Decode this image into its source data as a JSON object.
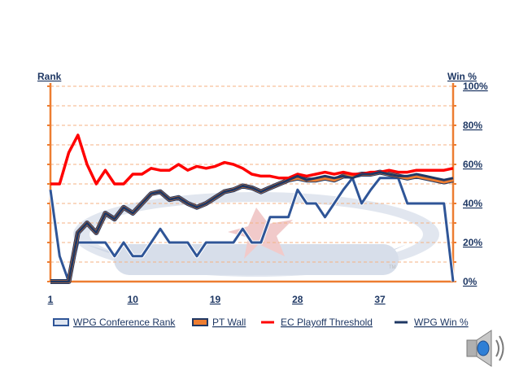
{
  "chart_data": {
    "type": "line",
    "left_axis_title": "Rank",
    "right_axis_title": "Win %",
    "right_ticks": [
      "0%",
      "20%",
      "40%",
      "60%",
      "80%",
      "100%"
    ],
    "x_tick_labels": [
      "1",
      "10",
      "19",
      "28",
      "37"
    ],
    "x_tick_values": [
      1,
      10,
      19,
      28,
      37
    ],
    "xlim": [
      1,
      45
    ],
    "ylim": [
      0,
      100
    ],
    "grid": "horizontal dashed",
    "legend_position": "bottom",
    "series": [
      {
        "name": "WPG Conference Rank",
        "color": "#2f5597",
        "x": [
          1,
          2,
          3,
          4,
          5,
          6,
          7,
          8,
          9,
          10,
          11,
          12,
          13,
          14,
          15,
          16,
          17,
          18,
          19,
          20,
          21,
          22,
          23,
          24,
          25,
          26,
          27,
          28,
          29,
          30,
          31,
          32,
          33,
          34,
          35,
          36,
          37,
          38,
          39,
          40,
          41,
          42,
          43,
          44,
          45
        ],
        "values": [
          47,
          13,
          0,
          20,
          20,
          20,
          20,
          13,
          20,
          13,
          13,
          20,
          27,
          20,
          20,
          20,
          13,
          20,
          20,
          20,
          20,
          27,
          20,
          20,
          33,
          33,
          33,
          47,
          40,
          40,
          33,
          40,
          47,
          53,
          40,
          47,
          53,
          53,
          53,
          40,
          40,
          40,
          40,
          40,
          0
        ]
      },
      {
        "name": "PT Wall",
        "color": "#ed7d31",
        "x": [
          1,
          2,
          3,
          4,
          5,
          6,
          7,
          8,
          9,
          10,
          11,
          12,
          13,
          14,
          15,
          16,
          17,
          18,
          19,
          20,
          21,
          22,
          23,
          24,
          25,
          26,
          27,
          28,
          29,
          30,
          31,
          32,
          33,
          34,
          35,
          36,
          37,
          38,
          39,
          40,
          41,
          42,
          43,
          44,
          45
        ],
        "values": [
          0,
          0,
          0,
          25,
          30,
          25,
          35,
          32,
          38,
          35,
          40,
          45,
          46,
          42,
          43,
          40,
          38,
          40,
          43,
          46,
          47,
          49,
          48,
          46,
          48,
          50,
          52,
          53,
          52,
          52,
          53,
          52,
          54,
          54,
          55,
          55,
          56,
          55,
          54,
          53,
          54,
          53,
          52,
          51,
          52
        ]
      },
      {
        "name": "EC Playoff Threshold",
        "color": "#ff0000",
        "x": [
          1,
          2,
          3,
          4,
          5,
          6,
          7,
          8,
          9,
          10,
          11,
          12,
          13,
          14,
          15,
          16,
          17,
          18,
          19,
          20,
          21,
          22,
          23,
          24,
          25,
          26,
          27,
          28,
          29,
          30,
          31,
          32,
          33,
          34,
          35,
          36,
          37,
          38,
          39,
          40,
          41,
          42,
          43,
          44,
          45
        ],
        "values": [
          50,
          50,
          66,
          75,
          60,
          50,
          57,
          50,
          50,
          55,
          55,
          58,
          57,
          57,
          60,
          57,
          59,
          58,
          59,
          61,
          60,
          58,
          55,
          54,
          54,
          53,
          53,
          55,
          54,
          55,
          56,
          55,
          56,
          55,
          55,
          56,
          56,
          57,
          56,
          56,
          57,
          57,
          57,
          57,
          58
        ]
      },
      {
        "name": "WPG Win %",
        "color": "#1f3864",
        "x": [
          1,
          2,
          3,
          4,
          5,
          6,
          7,
          8,
          9,
          10,
          11,
          12,
          13,
          14,
          15,
          16,
          17,
          18,
          19,
          20,
          21,
          22,
          23,
          24,
          25,
          26,
          27,
          28,
          29,
          30,
          31,
          32,
          33,
          34,
          35,
          36,
          37,
          38,
          39,
          40,
          41,
          42,
          43,
          44,
          45
        ],
        "values": [
          0,
          0,
          0,
          25,
          30,
          25,
          35,
          32,
          38,
          35,
          40,
          45,
          46,
          42,
          43,
          40,
          38,
          40,
          43,
          46,
          47,
          49,
          48,
          46,
          48,
          50,
          52,
          54,
          52,
          53,
          54,
          53,
          54,
          53,
          55,
          55,
          56,
          55,
          54,
          54,
          55,
          54,
          53,
          52,
          53
        ]
      }
    ]
  },
  "icons": {
    "speaker": "speaker-icon",
    "watermark": "jets-logo-watermark"
  }
}
